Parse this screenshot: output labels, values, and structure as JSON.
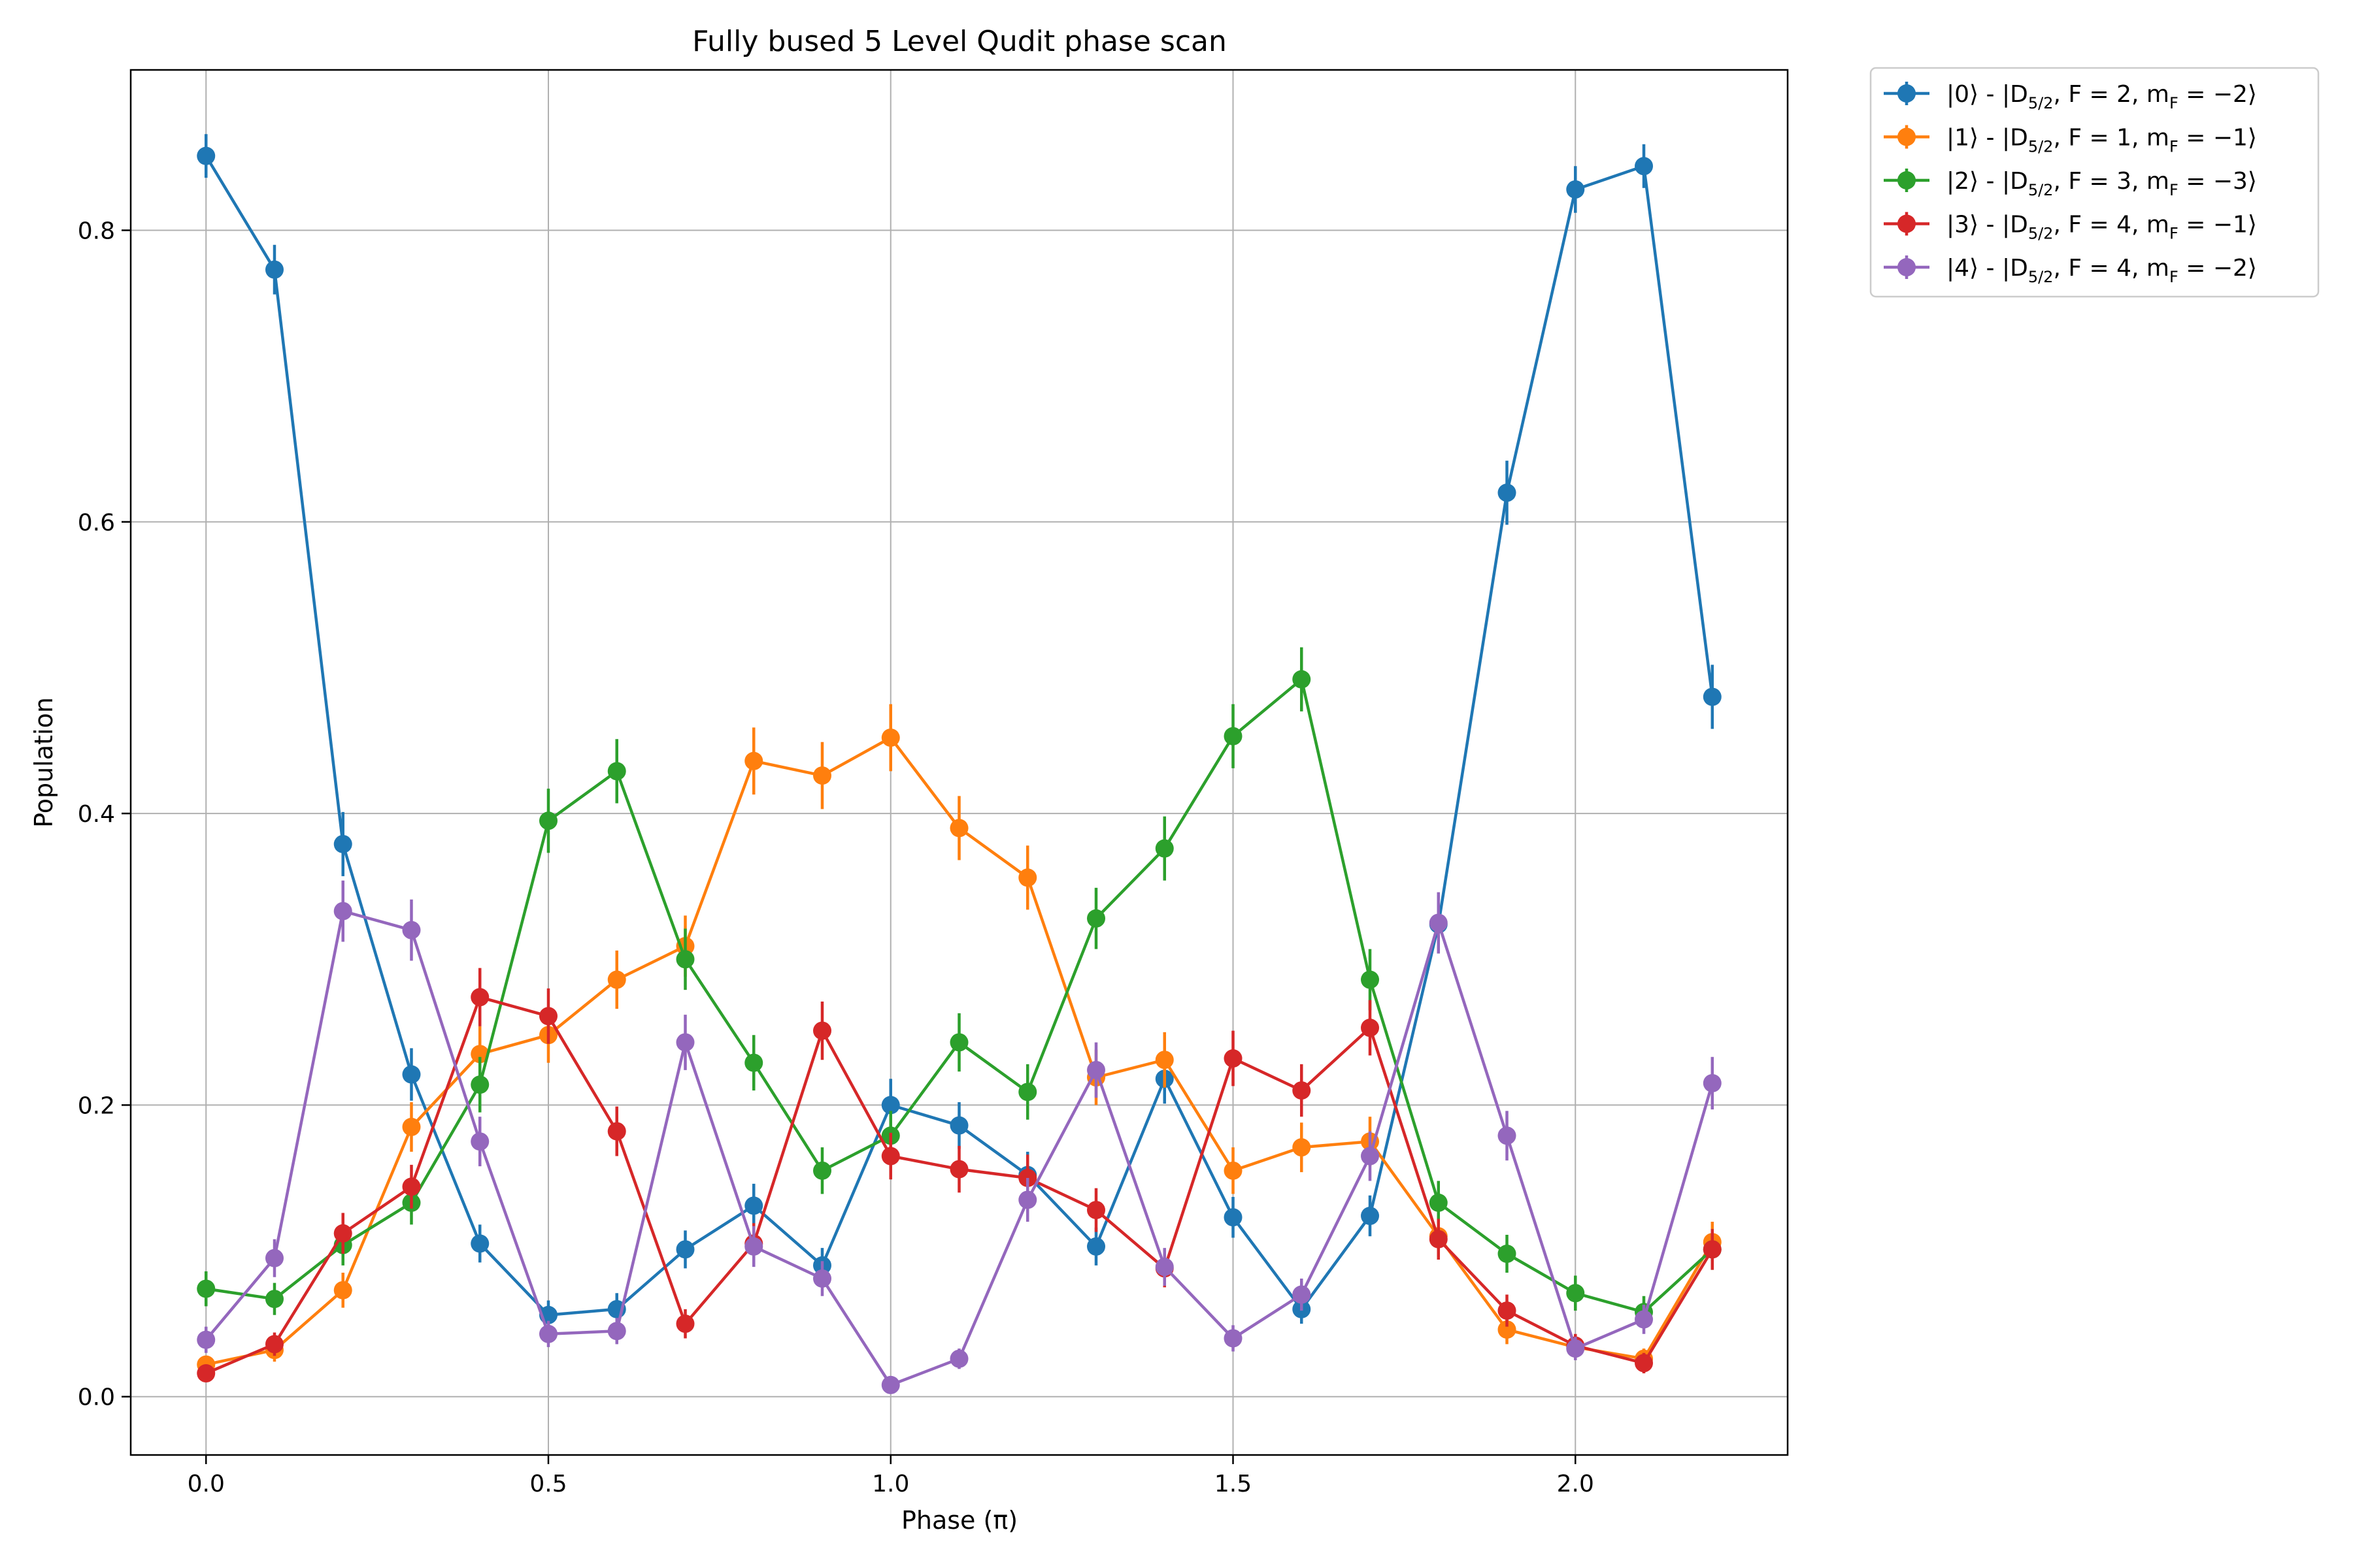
{
  "chart_data": {
    "type": "line",
    "title": "Fully bused 5 Level Qudit phase scan",
    "xlabel": "Phase (π)",
    "ylabel": "Population",
    "xlim": [
      -0.11,
      2.31
    ],
    "ylim": [
      -0.04,
      0.91
    ],
    "xticks": [
      "0.0",
      "0.5",
      "1.0",
      "1.5",
      "2.0"
    ],
    "xtick_values": [
      0.0,
      0.5,
      1.0,
      1.5,
      2.0
    ],
    "yticks": [
      "0.0",
      "0.2",
      "0.4",
      "0.6",
      "0.8"
    ],
    "ytick_values": [
      0.0,
      0.2,
      0.4,
      0.6,
      0.8
    ],
    "grid": true,
    "error_bars": true,
    "legend_position": "outside-top-right",
    "x": [
      0.0,
      0.1,
      0.2,
      0.3,
      0.4,
      0.5,
      0.6,
      0.7,
      0.8,
      0.9,
      1.0,
      1.1,
      1.2,
      1.3,
      1.4,
      1.5,
      1.6,
      1.7,
      1.8,
      1.9,
      2.0,
      2.1,
      2.2
    ],
    "series": [
      {
        "name": "|0⟩ - |D5/2, F = 2, mF = −2⟩",
        "legend": {
          "ket": "|0⟩ - |D",
          "sub": "5/2",
          "mid": ", F = 2, m",
          "sub2": "F",
          "end": " = −2⟩"
        },
        "color": "#1f77b4",
        "values": [
          0.851,
          0.773,
          0.379,
          0.221,
          0.105,
          0.056,
          0.06,
          0.101,
          0.131,
          0.09,
          0.2,
          0.186,
          0.152,
          0.103,
          0.218,
          0.123,
          0.06,
          0.124,
          0.324,
          0.62,
          0.828,
          0.844,
          0.48
        ],
        "errors": [
          0.015,
          0.017,
          0.022,
          0.018,
          0.013,
          0.01,
          0.011,
          0.013,
          0.015,
          0.012,
          0.018,
          0.016,
          0.016,
          0.013,
          0.017,
          0.014,
          0.01,
          0.014,
          0.02,
          0.022,
          0.016,
          0.015,
          0.022
        ]
      },
      {
        "name": "|1⟩ - |D5/2, F = 1, mF = −1⟩",
        "legend": {
          "ket": "|1⟩ - |D",
          "sub": "5/2",
          "mid": ", F = 1, m",
          "sub2": "F",
          "end": " = −1⟩"
        },
        "color": "#ff7f0e",
        "values": [
          0.022,
          0.032,
          0.073,
          0.185,
          0.235,
          0.248,
          0.286,
          0.309,
          0.436,
          0.426,
          0.452,
          0.39,
          0.356,
          0.219,
          0.231,
          0.155,
          0.171,
          0.175,
          0.11,
          0.046,
          0.034,
          0.026,
          0.106
        ],
        "errors": [
          0.006,
          0.008,
          0.012,
          0.017,
          0.019,
          0.019,
          0.02,
          0.021,
          0.023,
          0.023,
          0.023,
          0.022,
          0.022,
          0.019,
          0.019,
          0.016,
          0.017,
          0.017,
          0.014,
          0.01,
          0.008,
          0.007,
          0.014
        ]
      },
      {
        "name": "|2⟩ - |D5/2, F = 3, mF = −3⟩",
        "legend": {
          "ket": "|2⟩ - |D",
          "sub": "5/2",
          "mid": ", F = 3, m",
          "sub2": "F",
          "end": " = −3⟩"
        },
        "color": "#2ca02c",
        "values": [
          0.074,
          0.067,
          0.104,
          0.133,
          0.214,
          0.395,
          0.429,
          0.3,
          0.229,
          0.155,
          0.179,
          0.243,
          0.209,
          0.328,
          0.376,
          0.453,
          0.492,
          0.286,
          0.133,
          0.098,
          0.071,
          0.058,
          0.101
        ],
        "errors": [
          0.012,
          0.011,
          0.014,
          0.015,
          0.019,
          0.022,
          0.022,
          0.021,
          0.019,
          0.016,
          0.017,
          0.02,
          0.019,
          0.021,
          0.022,
          0.022,
          0.022,
          0.021,
          0.015,
          0.013,
          0.012,
          0.011,
          0.014
        ]
      },
      {
        "name": "|3⟩ - |D5/2, F = 4, mF = −1⟩",
        "legend": {
          "ket": "|3⟩ - |D",
          "sub": "5/2",
          "mid": ", F = 4, m",
          "sub2": "F",
          "end": " = −1⟩"
        },
        "color": "#d62728",
        "values": [
          0.016,
          0.036,
          0.112,
          0.144,
          0.274,
          0.261,
          0.182,
          0.05,
          0.105,
          0.251,
          0.165,
          0.156,
          0.15,
          0.128,
          0.088,
          0.232,
          0.21,
          0.253,
          0.108,
          0.059,
          0.035,
          0.023,
          0.101
        ],
        "errors": [
          0.006,
          0.008,
          0.014,
          0.015,
          0.02,
          0.019,
          0.017,
          0.01,
          0.014,
          0.02,
          0.016,
          0.016,
          0.016,
          0.015,
          0.013,
          0.019,
          0.018,
          0.019,
          0.014,
          0.011,
          0.008,
          0.007,
          0.014
        ]
      },
      {
        "name": "|4⟩ - |D5/2, F = 4, mF = −2⟩",
        "legend": {
          "ket": "|4⟩ - |D",
          "sub": "5/2",
          "mid": ", F = 4, m",
          "sub2": "F",
          "end": " = −2⟩"
        },
        "color": "#9467bd",
        "values": [
          0.039,
          0.095,
          0.333,
          0.32,
          0.175,
          0.043,
          0.045,
          0.243,
          0.103,
          0.081,
          0.008,
          0.026,
          0.135,
          0.224,
          0.089,
          0.04,
          0.07,
          0.165,
          0.325,
          0.179,
          0.033,
          0.053,
          0.215
        ],
        "errors": [
          0.009,
          0.013,
          0.021,
          0.021,
          0.017,
          0.009,
          0.009,
          0.019,
          0.014,
          0.012,
          0.004,
          0.007,
          0.015,
          0.019,
          0.013,
          0.009,
          0.011,
          0.017,
          0.021,
          0.017,
          0.008,
          0.01,
          0.018
        ]
      }
    ]
  }
}
